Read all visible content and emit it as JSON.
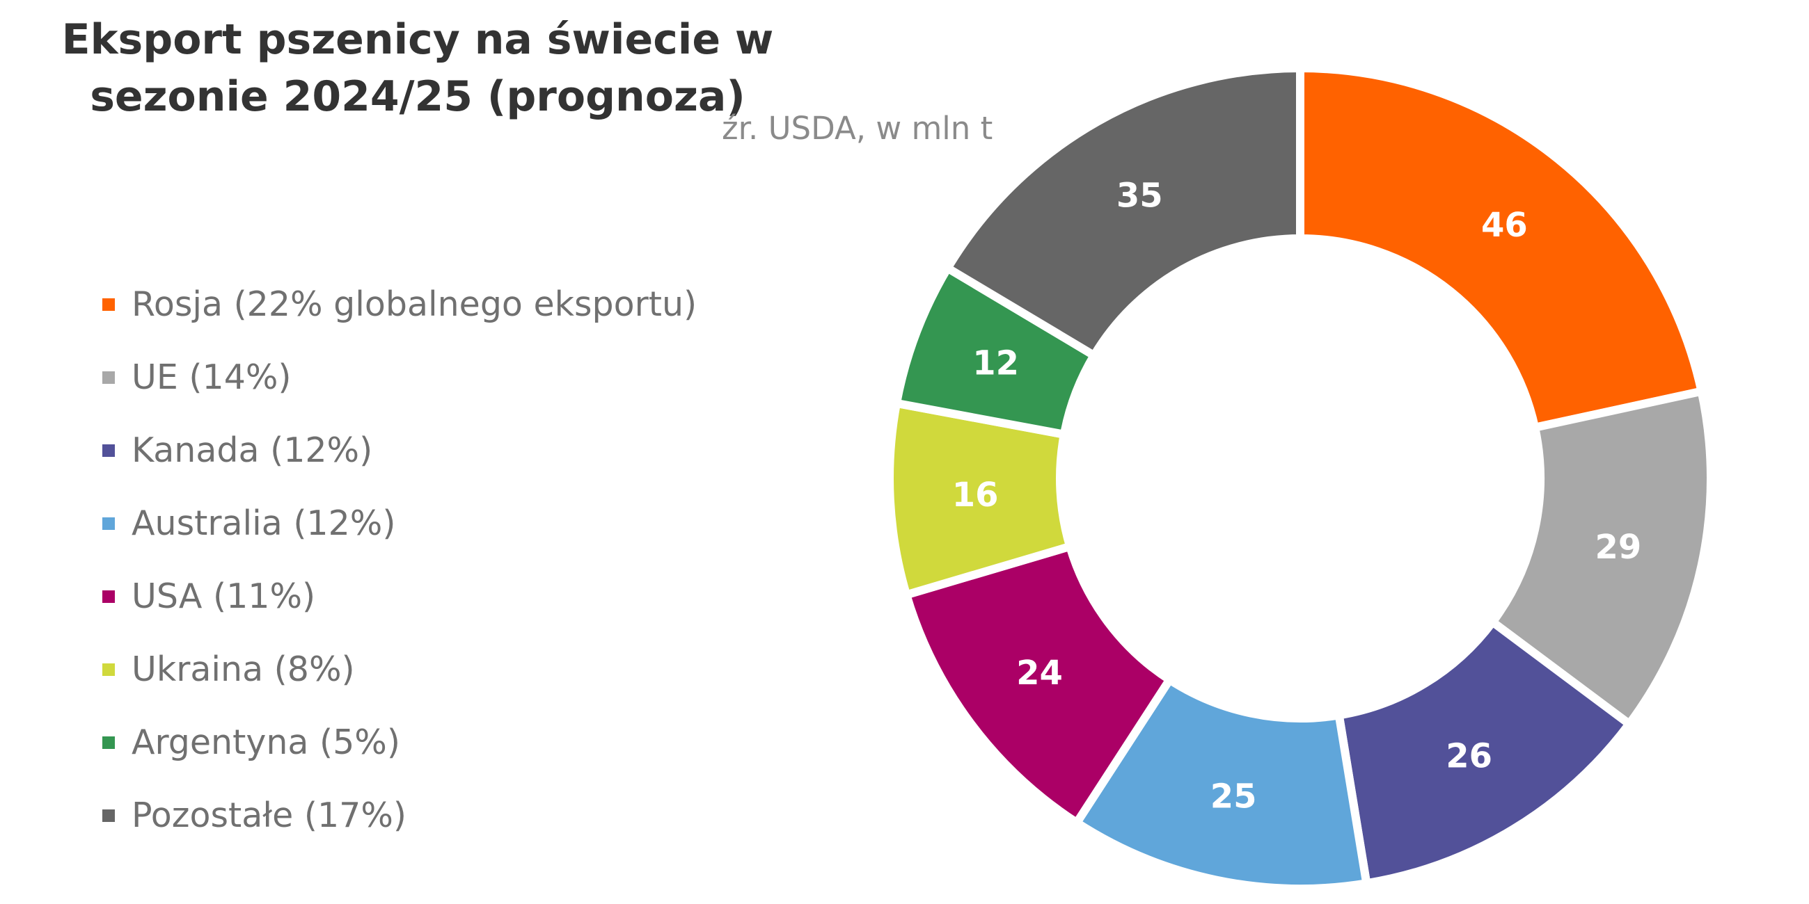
{
  "chart_data": {
    "type": "pie",
    "title": "Eksport pszenicy na świecie w sezonie 2024/25 (prognoza)",
    "subtitle": "źr. USDA, w mln t",
    "donut": true,
    "legend_position": "left",
    "slices": [
      {
        "label": "Rosja (22% globalnego eksportu)",
        "value": 46,
        "color": "#ff6200"
      },
      {
        "label": "UE (14%)",
        "value": 29,
        "color": "#a8a8a8"
      },
      {
        "label": "Kanada (12%)",
        "value": 26,
        "color": "#525199"
      },
      {
        "label": "Australia (12%)",
        "value": 25,
        "color": "#60a6da"
      },
      {
        "label": "USA (11%)",
        "value": 24,
        "color": "#ab0066"
      },
      {
        "label": "Ukraina (8%)",
        "value": 16,
        "color": "#d0d93c"
      },
      {
        "label": "Argentyna (5%)",
        "value": 12,
        "color": "#349651"
      },
      {
        "label": "Pozostałe (17%)",
        "value": 35,
        "color": "#666666"
      }
    ]
  }
}
